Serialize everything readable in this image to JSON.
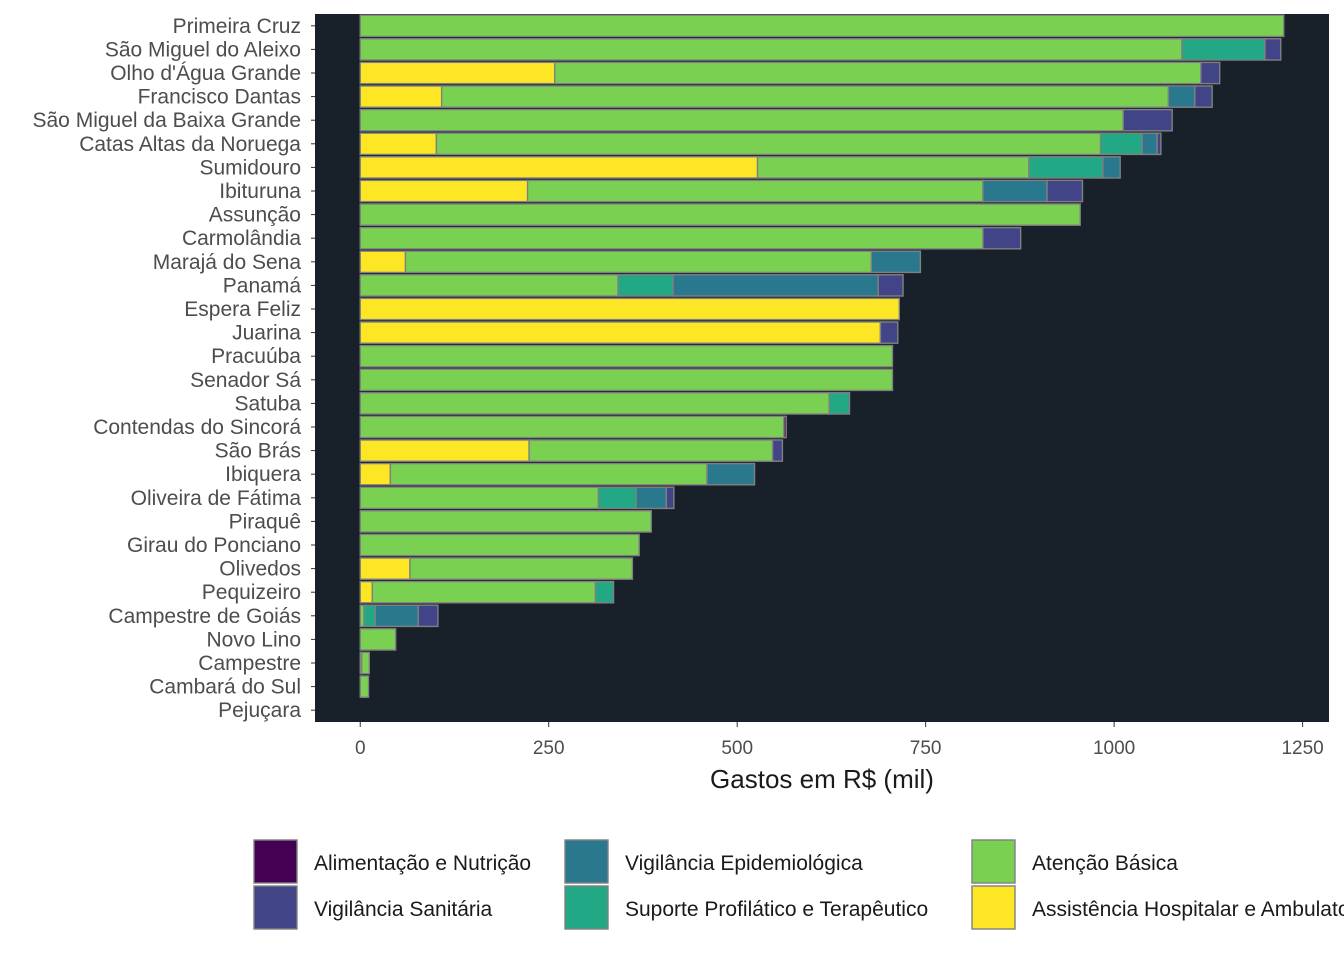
{
  "chart_data": {
    "type": "bar",
    "orientation": "horizontal",
    "stacked": true,
    "xlabel": "Gastos em R$ (mil)",
    "ylabel": "",
    "xlim": [
      -60,
      1285
    ],
    "xticks": [
      0,
      250,
      500,
      750,
      1000,
      1250
    ],
    "panel_background": "#18202a",
    "bar_outline": "#808080",
    "grid": false,
    "legend_position": "bottom",
    "categories": [
      "Primeira Cruz",
      "São Miguel do Aleixo",
      "Olho d'Água Grande",
      "Francisco Dantas",
      "São Miguel da Baixa Grande",
      "Catas Altas da Noruega",
      "Sumidouro",
      "Ibituruna",
      "Assunção",
      "Carmolândia",
      "Marajá do Sena",
      "Panamá",
      "Espera Feliz",
      "Juarina",
      "Pracuúba",
      "Senador Sá",
      "Satuba",
      "Contendas do Sincorá",
      "São Brás",
      "Ibiquera",
      "Oliveira de Fátima",
      "Piraquê",
      "Girau do Ponciano",
      "Olivedos",
      "Pequizeiro",
      "Campestre de Goiás",
      "Novo Lino",
      "Campestre",
      "Cambará do Sul",
      "Pejuçara"
    ],
    "series": [
      {
        "name": "Assistência Hospitalar e Ambulatorial",
        "color": "#fde725",
        "values": [
          0,
          0,
          258,
          108,
          0,
          101,
          527,
          222,
          0,
          0,
          60,
          0,
          715,
          690,
          0,
          0,
          0,
          0,
          224,
          40,
          0,
          0,
          0,
          66,
          16,
          0,
          0,
          2,
          0,
          0
        ]
      },
      {
        "name": "Atenção Básica",
        "color": "#7ad151",
        "values": [
          1225,
          1090,
          857,
          964,
          1012,
          881,
          360,
          604,
          955,
          826,
          618,
          342,
          0,
          0,
          706,
          706,
          622,
          562,
          323,
          420,
          316,
          386,
          370,
          295,
          296,
          5,
          47,
          10,
          11,
          0
        ]
      },
      {
        "name": "Suporte Profilático e Terapêutico",
        "color": "#22a884",
        "values": [
          0,
          110,
          0,
          0,
          0,
          55,
          98,
          0,
          0,
          0,
          0,
          73,
          0,
          0,
          0,
          0,
          27,
          0,
          0,
          0,
          50,
          0,
          0,
          0,
          24,
          15,
          0,
          0,
          0,
          0
        ]
      },
      {
        "name": "Vigilância Epidemiológica",
        "color": "#2a788e",
        "values": [
          0,
          0,
          0,
          35,
          0,
          20,
          23,
          85,
          0,
          0,
          65,
          272,
          0,
          0,
          0,
          0,
          0,
          0,
          0,
          63,
          40,
          0,
          0,
          0,
          0,
          57,
          0,
          0,
          0,
          0
        ]
      },
      {
        "name": "Vigilância Sanitária",
        "color": "#414487",
        "values": [
          0,
          21,
          25,
          23,
          65,
          5,
          0,
          47,
          0,
          50,
          0,
          33,
          0,
          23,
          0,
          0,
          0,
          0,
          13,
          0,
          10,
          0,
          0,
          0,
          0,
          26,
          0,
          0,
          0,
          0
        ]
      },
      {
        "name": "Alimentação e Nutrição",
        "color": "#440154",
        "values": [
          0,
          0,
          0,
          0,
          0,
          0,
          0,
          0,
          0,
          0,
          0,
          0,
          0,
          0,
          0,
          0,
          0,
          3,
          0,
          0,
          0,
          0,
          0,
          0,
          0,
          0,
          0,
          0,
          0,
          0
        ]
      }
    ],
    "legend": [
      {
        "label": "Alimentação e Nutrição",
        "color": "#440154"
      },
      {
        "label": "Vigilância Sanitária",
        "color": "#414487"
      },
      {
        "label": "Vigilância Epidemiológica",
        "color": "#2a788e"
      },
      {
        "label": "Suporte Profilático e Terapêutico",
        "color": "#22a884"
      },
      {
        "label": "Atenção Básica",
        "color": "#7ad151"
      },
      {
        "label": "Assistência Hospitalar e Ambulatorial",
        "color": "#fde725"
      }
    ]
  }
}
